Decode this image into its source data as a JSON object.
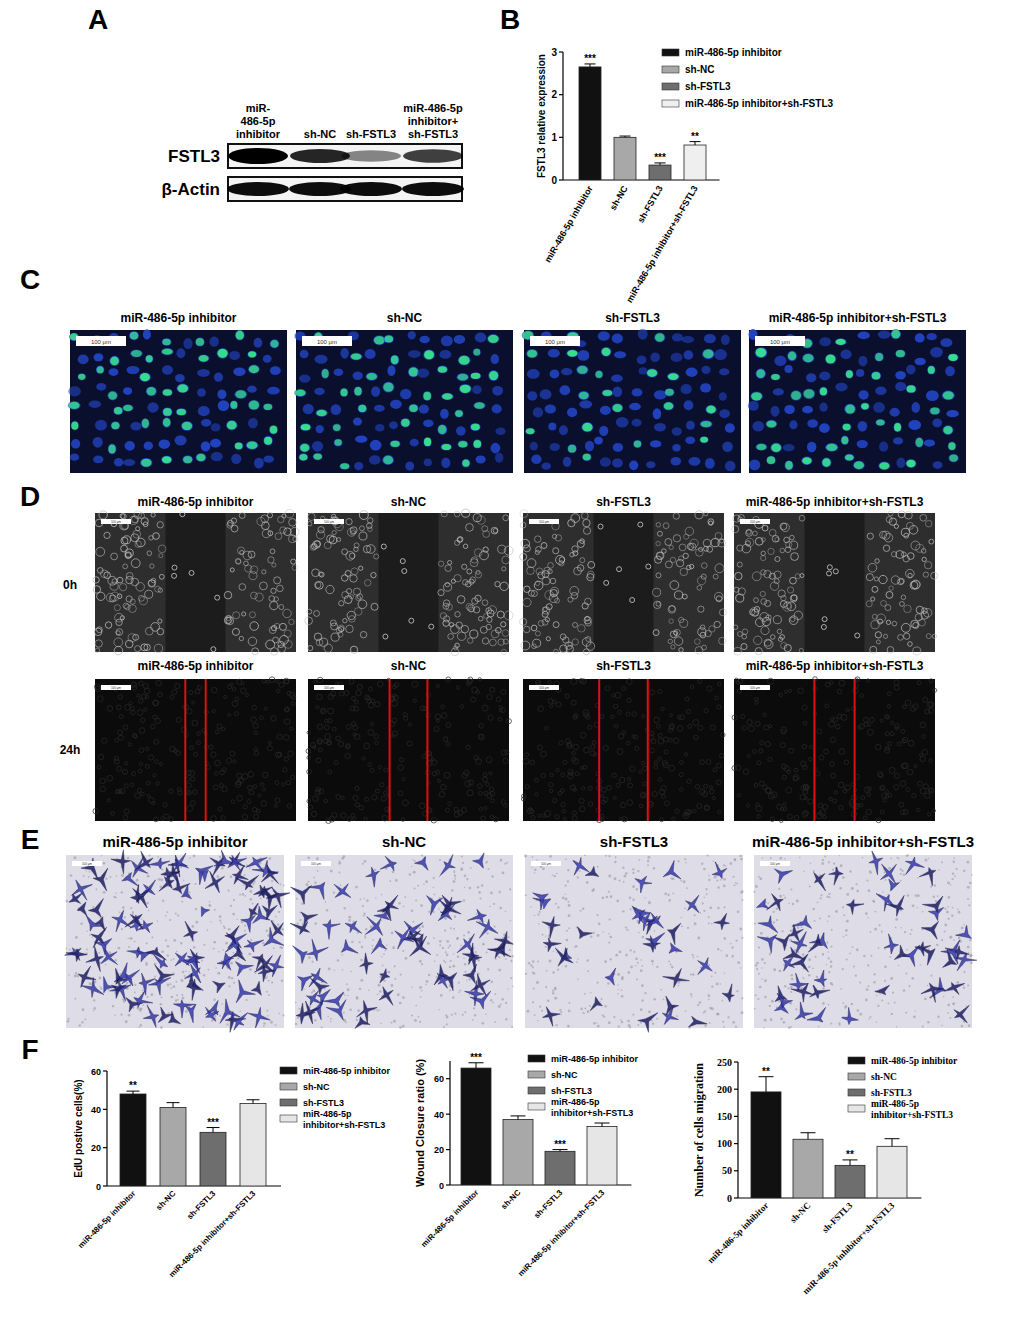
{
  "chart_data": [
    {
      "type": "bar",
      "y_label": "FSTL3 relative expression",
      "categories": [
        "miR-486-5p inhibitor",
        "sh-NC",
        "sh-FSTL3",
        "miR-486-5p inhibitor+sh-FSTL3"
      ],
      "values": [
        2.65,
        1.0,
        0.35,
        0.82
      ],
      "errors": [
        0.07,
        0.03,
        0.05,
        0.08
      ],
      "annotations": [
        "***",
        null,
        "***",
        "**"
      ],
      "colors": [
        "#111111",
        "#a8a8a8",
        "#6e6e6e",
        "#efefef"
      ],
      "ylim": [
        0,
        3
      ],
      "yticks": [
        0,
        1,
        2,
        3
      ],
      "legend": "right"
    },
    {
      "type": "bar",
      "y_label": "EdU postive cells(%)",
      "categories": [
        "miR-486-5p inhibitor",
        "sh-NC",
        "sh-FSTL3",
        "miR-486-5p inhibitor+sh-FSTL3"
      ],
      "values": [
        48,
        41,
        28,
        43
      ],
      "errors": [
        1.5,
        2.5,
        2.5,
        2
      ],
      "annotations": [
        "**",
        null,
        "***",
        null
      ],
      "colors": [
        "#111111",
        "#a8a8a8",
        "#6e6e6e",
        "#e6e6e6"
      ],
      "ylim": [
        0,
        60
      ],
      "yticks": [
        0,
        20,
        40,
        60
      ],
      "legend": "right"
    },
    {
      "type": "bar",
      "y_label": "Wound Closure ratio (%)",
      "categories": [
        "miR-486-5p inhibitor",
        "sh-NC",
        "sh-FSTL3",
        "miR-486-5p inhibitor+sh-FSTL3"
      ],
      "values": [
        66,
        37,
        19,
        33
      ],
      "errors": [
        3,
        2,
        1,
        2
      ],
      "annotations": [
        "***",
        null,
        "***",
        null
      ],
      "colors": [
        "#111111",
        "#a8a8a8",
        "#6e6e6e",
        "#e6e6e6"
      ],
      "ylim": [
        0,
        70
      ],
      "yticks": [
        0,
        20,
        40,
        60
      ],
      "legend": "right"
    },
    {
      "type": "bar",
      "y_label": "Number of cells migration",
      "categories": [
        "miR-486-5p inhibitor",
        "sh-NC",
        "sh-FSTL3",
        "miR-486-5p inhibitor+sh-FSTL3"
      ],
      "values": [
        195,
        108,
        60,
        95
      ],
      "errors": [
        28,
        12,
        10,
        14
      ],
      "annotations": [
        "**",
        null,
        "**",
        null
      ],
      "colors": [
        "#111111",
        "#a8a8a8",
        "#6e6e6e",
        "#e6e6e6"
      ],
      "ylim": [
        0,
        250
      ],
      "yticks": [
        0,
        50,
        100,
        150,
        200,
        250
      ],
      "legend": "right"
    }
  ],
  "figure": {
    "panel_labels": [
      "A",
      "B",
      "C",
      "D",
      "E",
      "F"
    ],
    "blot": {
      "columns": [
        [
          "miR-",
          "486-5p",
          "inhibitor"
        ],
        [
          "sh-NC"
        ],
        [
          "sh-FSTL3"
        ],
        [
          "miR-486-5p",
          "inhibitor+",
          "sh-FSTL3"
        ]
      ],
      "rows": [
        "FSTL3",
        "β-Actin"
      ]
    },
    "edu_images": {
      "titles": [
        "miR-486-5p inhibitor",
        "sh-NC",
        "sh-FSTL3",
        "miR-486-5p inhibitor+sh-FSTL3"
      ],
      "scale_bar": "100 μm"
    },
    "wound_images": {
      "titles": [
        "miR-486-5p inhibitor",
        "sh-NC",
        "sh-FSTL3",
        "miR-486-5p inhibitor+sh-FSTL3"
      ],
      "timepoints": [
        "0h",
        "24h"
      ],
      "scale_bar": "100 μm"
    },
    "transwell_images": {
      "titles": [
        "miR-486-5p inhibitor",
        "sh-NC",
        "sh-FSTL3",
        "miR-486-5p inhibitor+sh-FSTL3"
      ],
      "scale_bar": "100 μm"
    }
  }
}
